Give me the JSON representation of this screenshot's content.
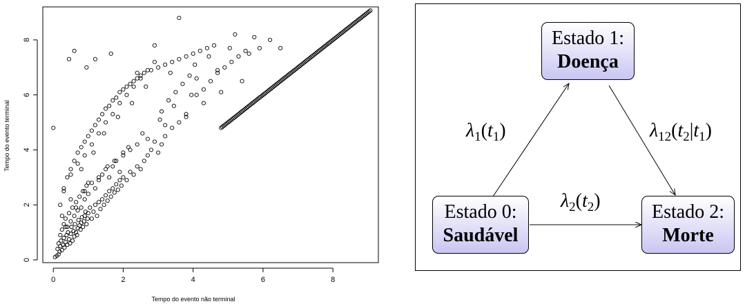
{
  "chart_data": {
    "type": "scatter",
    "title": "",
    "xlabel": "Tempo do evento não terminal",
    "ylabel": "Tempo do evento terminal",
    "xlim": [
      -0.3,
      9.3
    ],
    "ylim": [
      -0.1,
      9.2
    ],
    "xticks": [
      0,
      2,
      4,
      6,
      8
    ],
    "yticks": [
      0,
      2,
      4,
      6,
      8
    ],
    "grid": false,
    "marker": "open-circle",
    "points_x": [
      0.05,
      0.1,
      0.12,
      0.15,
      0.15,
      0.18,
      0.2,
      0.2,
      0.22,
      0.25,
      0.25,
      0.28,
      0.3,
      0.3,
      0.32,
      0.35,
      0.35,
      0.38,
      0.4,
      0.4,
      0.42,
      0.45,
      0.45,
      0.48,
      0.5,
      0.5,
      0.52,
      0.55,
      0.55,
      0.58,
      0.6,
      0.6,
      0.62,
      0.65,
      0.65,
      0.68,
      0.7,
      0.7,
      0.72,
      0.75,
      0.75,
      0.78,
      0.8,
      0.8,
      0.82,
      0.85,
      0.85,
      0.88,
      0.9,
      0.9,
      0.92,
      0.95,
      0.95,
      0.98,
      1.0,
      1.0,
      1.05,
      1.1,
      1.1,
      1.15,
      1.2,
      1.2,
      1.25,
      1.3,
      1.3,
      1.35,
      1.4,
      1.4,
      1.45,
      1.5,
      1.5,
      1.55,
      1.6,
      1.6,
      1.65,
      1.7,
      1.7,
      1.75,
      1.8,
      1.8,
      1.85,
      1.9,
      1.9,
      1.95,
      2.0,
      2.0,
      2.1,
      2.2,
      2.2,
      2.3,
      2.4,
      2.4,
      2.5,
      2.6,
      2.7,
      2.8,
      2.9,
      3.0,
      3.1,
      3.2,
      3.4,
      3.6,
      3.8,
      0.2,
      0.3,
      0.4,
      0.5,
      0.6,
      0.7,
      0.8,
      0.9,
      1.0,
      1.1,
      1.2,
      1.3,
      1.4,
      1.5,
      1.6,
      1.7,
      1.8,
      1.9,
      2.0,
      2.1,
      2.2,
      2.3,
      2.4,
      2.5,
      2.6,
      2.8,
      3.0,
      3.2,
      3.4,
      3.6,
      3.8,
      4.0,
      4.2,
      4.4,
      4.6,
      0.3,
      0.5,
      0.7,
      0.9,
      1.1,
      1.3,
      1.5,
      1.7,
      1.9,
      2.1,
      2.3,
      2.5,
      2.7,
      2.9,
      3.1,
      3.3,
      3.5,
      3.7,
      3.9,
      4.1,
      4.3,
      4.5,
      4.7,
      4.9,
      5.1,
      5.3,
      5.5,
      0.0,
      0.45,
      0.6,
      0.95,
      1.2,
      1.65,
      2.4,
      2.9,
      3.6,
      4.1,
      4.7,
      5.2,
      5.6,
      5.9,
      6.2,
      6.5,
      0.25,
      0.5,
      1.0,
      1.55,
      2.0,
      2.7,
      3.2,
      3.8,
      4.3,
      4.8,
      5.4,
      0.35,
      0.65,
      0.9,
      1.3,
      1.75,
      2.15,
      2.55,
      3.05,
      3.45,
      3.95,
      0.8,
      1.15,
      1.45,
      1.85,
      2.25,
      2.65,
      3.35,
      4.05,
      4.45,
      5.05,
      5.75
    ],
    "points_y": [
      0.1,
      0.15,
      0.4,
      0.2,
      0.6,
      0.3,
      0.5,
      0.9,
      0.7,
      0.35,
      1.1,
      0.55,
      0.8,
      1.3,
      0.45,
      0.65,
      1.5,
      0.9,
      0.55,
      1.2,
      1.0,
      0.75,
      1.7,
      0.6,
      0.95,
      1.4,
      1.2,
      0.7,
      1.9,
      1.05,
      0.85,
      1.6,
      1.3,
      1.0,
      2.1,
      0.9,
      1.15,
      1.8,
      1.45,
      1.25,
      2.3,
      1.1,
      1.35,
      1.9,
      1.55,
      1.2,
      2.5,
      1.4,
      1.6,
      2.2,
      1.75,
      1.3,
      2.7,
      1.5,
      1.7,
      2.4,
      1.9,
      1.5,
      2.8,
      1.75,
      2.0,
      2.6,
      1.6,
      2.1,
      2.9,
      1.85,
      2.2,
      3.1,
      2.0,
      2.35,
      3.3,
      2.15,
      2.5,
      3.0,
      2.3,
      2.6,
      3.4,
      2.45,
      2.75,
      3.6,
      2.55,
      2.9,
      3.2,
      2.7,
      3.0,
      3.8,
      2.9,
      3.2,
      4.0,
      3.1,
      3.4,
      4.2,
      3.3,
      3.6,
      3.8,
      4.0,
      4.3,
      3.9,
      4.2,
      4.5,
      4.8,
      5.0,
      5.2,
      2.0,
      2.5,
      3.0,
      3.3,
      3.6,
      3.9,
      4.1,
      4.3,
      4.5,
      4.7,
      4.9,
      5.1,
      5.3,
      5.5,
      5.6,
      5.8,
      5.9,
      6.1,
      6.2,
      6.3,
      6.4,
      6.5,
      6.6,
      6.7,
      6.8,
      6.9,
      7.0,
      7.1,
      7.2,
      7.3,
      7.4,
      7.5,
      7.6,
      7.7,
      7.8,
      2.6,
      3.1,
      3.5,
      3.8,
      4.2,
      4.6,
      5.0,
      5.3,
      5.7,
      6.0,
      6.3,
      6.6,
      6.9,
      7.2,
      5.4,
      5.8,
      6.1,
      6.4,
      6.7,
      6.0,
      6.2,
      6.5,
      6.8,
      7.0,
      7.2,
      7.4,
      7.6,
      4.8,
      7.3,
      7.6,
      7.0,
      7.3,
      7.5,
      6.8,
      7.8,
      8.8,
      6.6,
      6.9,
      8.2,
      7.5,
      7.7,
      8.0,
      7.7,
      1.6,
      2.2,
      2.8,
      3.4,
      3.9,
      4.4,
      4.9,
      5.3,
      5.7,
      6.1,
      6.5,
      1.2,
      1.9,
      2.5,
      3.0,
      3.6,
      4.1,
      4.6,
      5.1,
      5.6,
      6.0,
      3.3,
      3.9,
      4.6,
      5.2,
      5.7,
      6.3,
      6.8,
      7.1,
      7.4,
      7.7,
      8.1
    ],
    "diagonal": {
      "from": 4.8,
      "to": 9.1
    }
  },
  "diagram": {
    "state1": {
      "name": "Estado 1:",
      "desc": "Doença"
    },
    "state0": {
      "name": "Estado 0:",
      "desc": "Saudável"
    },
    "state2": {
      "name": "Estado 2:",
      "desc": "Morte"
    },
    "rate1": {
      "sym": "λ",
      "sub": "1",
      "arg": "t",
      "argsub": "1"
    },
    "rate12": {
      "sym": "λ",
      "sub": "12",
      "arg": "t",
      "argsub": "2",
      "cond": "t",
      "condsub": "1"
    },
    "rate2": {
      "sym": "λ",
      "sub": "2",
      "arg": "t",
      "argsub": "2"
    }
  }
}
